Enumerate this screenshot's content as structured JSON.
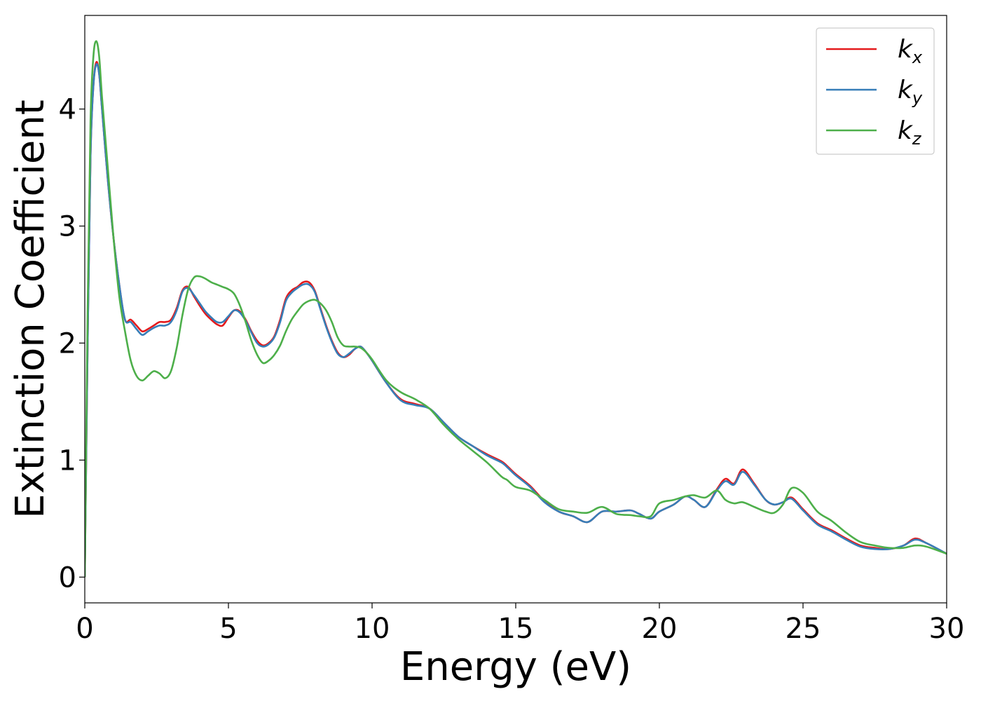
{
  "chart_data": {
    "type": "line",
    "xlabel": "Energy (eV)",
    "ylabel": "Extinction Coefficient",
    "xlim": [
      0,
      30
    ],
    "ylim": [
      -0.22,
      4.8
    ],
    "xticks": [
      "0",
      "5",
      "10",
      "15",
      "20",
      "25",
      "30"
    ],
    "xtick_values": [
      0,
      5,
      10,
      15,
      20,
      25,
      30
    ],
    "yticks": [
      "0",
      "1",
      "2",
      "3",
      "4"
    ],
    "ytick_values": [
      0,
      1,
      2,
      3,
      4
    ],
    "grid": false,
    "legend_position": "top-right",
    "series": [
      {
        "name": "k_x",
        "label_main": "k",
        "label_sub": "x",
        "color": "#e41a1c",
        "x": [
          0,
          0.1,
          0.2,
          0.3,
          0.4,
          0.5,
          0.6,
          0.8,
          1.0,
          1.2,
          1.4,
          1.6,
          1.8,
          2.0,
          2.2,
          2.4,
          2.6,
          2.8,
          3.0,
          3.2,
          3.4,
          3.6,
          3.8,
          4.0,
          4.2,
          4.4,
          4.6,
          4.8,
          5.0,
          5.2,
          5.4,
          5.6,
          5.8,
          6.0,
          6.2,
          6.4,
          6.6,
          6.8,
          7.0,
          7.2,
          7.4,
          7.6,
          7.8,
          8.0,
          8.2,
          8.4,
          8.6,
          8.8,
          9.0,
          9.2,
          9.4,
          9.6,
          9.8,
          10.0,
          10.5,
          11.0,
          11.5,
          12.0,
          12.5,
          13.0,
          13.5,
          14.0,
          14.5,
          14.7,
          15.0,
          15.5,
          16.0,
          16.5,
          17.0,
          17.5,
          18.0,
          18.5,
          19.0,
          19.3,
          19.7,
          20.0,
          20.5,
          20.9,
          21.2,
          21.6,
          22.0,
          22.3,
          22.6,
          22.9,
          23.3,
          23.7,
          24.0,
          24.3,
          24.6,
          25.0,
          25.5,
          26.0,
          26.5,
          27.0,
          27.5,
          28.0,
          28.5,
          28.9,
          29.3,
          30.0
        ],
        "y": [
          0,
          2.0,
          3.6,
          4.2,
          4.4,
          4.3,
          4.0,
          3.4,
          2.9,
          2.5,
          2.2,
          2.2,
          2.15,
          2.1,
          2.12,
          2.15,
          2.18,
          2.18,
          2.2,
          2.3,
          2.45,
          2.48,
          2.4,
          2.32,
          2.25,
          2.2,
          2.16,
          2.15,
          2.22,
          2.28,
          2.27,
          2.2,
          2.1,
          2.02,
          1.98,
          2.0,
          2.06,
          2.2,
          2.38,
          2.45,
          2.48,
          2.52,
          2.52,
          2.45,
          2.3,
          2.15,
          2.02,
          1.92,
          1.88,
          1.9,
          1.95,
          1.97,
          1.92,
          1.85,
          1.66,
          1.52,
          1.48,
          1.44,
          1.32,
          1.2,
          1.12,
          1.05,
          0.99,
          0.95,
          0.88,
          0.78,
          0.65,
          0.56,
          0.52,
          0.47,
          0.56,
          0.56,
          0.57,
          0.54,
          0.5,
          0.56,
          0.62,
          0.69,
          0.66,
          0.6,
          0.75,
          0.84,
          0.8,
          0.92,
          0.8,
          0.66,
          0.62,
          0.64,
          0.68,
          0.58,
          0.46,
          0.4,
          0.33,
          0.27,
          0.25,
          0.24,
          0.27,
          0.33,
          0.29,
          0.2
        ]
      },
      {
        "name": "k_y",
        "label_main": "k",
        "label_sub": "y",
        "color": "#377eb8",
        "x": [
          0,
          0.1,
          0.2,
          0.3,
          0.4,
          0.5,
          0.6,
          0.8,
          1.0,
          1.2,
          1.4,
          1.6,
          1.8,
          2.0,
          2.2,
          2.4,
          2.6,
          2.8,
          3.0,
          3.2,
          3.4,
          3.6,
          3.8,
          4.0,
          4.2,
          4.4,
          4.6,
          4.8,
          5.0,
          5.2,
          5.4,
          5.6,
          5.8,
          6.0,
          6.2,
          6.4,
          6.6,
          6.8,
          7.0,
          7.2,
          7.4,
          7.6,
          7.8,
          8.0,
          8.2,
          8.4,
          8.6,
          8.8,
          9.0,
          9.2,
          9.4,
          9.6,
          9.8,
          10.0,
          10.5,
          11.0,
          11.5,
          12.0,
          12.5,
          13.0,
          13.5,
          14.0,
          14.5,
          14.7,
          15.0,
          15.5,
          16.0,
          16.5,
          17.0,
          17.5,
          18.0,
          18.5,
          19.0,
          19.3,
          19.7,
          20.0,
          20.5,
          20.9,
          21.2,
          21.6,
          22.0,
          22.3,
          22.6,
          22.9,
          23.3,
          23.7,
          24.0,
          24.3,
          24.6,
          25.0,
          25.5,
          26.0,
          26.5,
          27.0,
          27.5,
          28.0,
          28.5,
          28.9,
          29.3,
          30.0
        ],
        "y": [
          0,
          2.0,
          3.6,
          4.2,
          4.38,
          4.3,
          4.0,
          3.4,
          2.9,
          2.5,
          2.2,
          2.18,
          2.12,
          2.07,
          2.1,
          2.13,
          2.15,
          2.15,
          2.18,
          2.28,
          2.44,
          2.47,
          2.41,
          2.34,
          2.27,
          2.22,
          2.18,
          2.18,
          2.23,
          2.28,
          2.26,
          2.19,
          2.09,
          2.0,
          1.97,
          1.99,
          2.05,
          2.18,
          2.36,
          2.43,
          2.47,
          2.5,
          2.5,
          2.44,
          2.29,
          2.14,
          2.01,
          1.91,
          1.88,
          1.91,
          1.95,
          1.97,
          1.92,
          1.85,
          1.66,
          1.51,
          1.47,
          1.44,
          1.32,
          1.2,
          1.12,
          1.04,
          0.98,
          0.94,
          0.87,
          0.77,
          0.64,
          0.56,
          0.52,
          0.47,
          0.56,
          0.56,
          0.57,
          0.54,
          0.5,
          0.56,
          0.62,
          0.69,
          0.66,
          0.6,
          0.74,
          0.82,
          0.79,
          0.9,
          0.79,
          0.66,
          0.62,
          0.64,
          0.67,
          0.57,
          0.45,
          0.39,
          0.32,
          0.26,
          0.24,
          0.24,
          0.27,
          0.32,
          0.29,
          0.2
        ]
      },
      {
        "name": "k_z",
        "label_main": "k",
        "label_sub": "z",
        "color": "#4daf4a",
        "x": [
          0,
          0.1,
          0.2,
          0.3,
          0.4,
          0.5,
          0.6,
          0.8,
          1.0,
          1.2,
          1.4,
          1.6,
          1.8,
          2.0,
          2.2,
          2.4,
          2.6,
          2.8,
          3.0,
          3.2,
          3.4,
          3.6,
          3.8,
          4.0,
          4.2,
          4.4,
          4.6,
          4.8,
          5.0,
          5.2,
          5.4,
          5.6,
          5.8,
          6.0,
          6.2,
          6.4,
          6.6,
          6.8,
          7.0,
          7.2,
          7.4,
          7.6,
          7.8,
          8.0,
          8.2,
          8.4,
          8.6,
          8.8,
          9.0,
          9.2,
          9.4,
          9.6,
          9.8,
          10.0,
          10.5,
          11.0,
          11.5,
          12.0,
          12.5,
          13.0,
          13.5,
          14.0,
          14.5,
          14.7,
          15.0,
          15.5,
          16.0,
          16.5,
          17.0,
          17.5,
          18.0,
          18.5,
          19.0,
          19.3,
          19.7,
          20.0,
          20.5,
          20.9,
          21.2,
          21.6,
          22.0,
          22.3,
          22.6,
          22.9,
          23.3,
          23.7,
          24.0,
          24.3,
          24.6,
          25.0,
          25.5,
          26.0,
          26.5,
          27.0,
          27.5,
          28.0,
          28.5,
          28.9,
          29.3,
          30.0
        ],
        "y": [
          0,
          2.3,
          3.9,
          4.45,
          4.58,
          4.45,
          4.1,
          3.5,
          2.9,
          2.4,
          2.1,
          1.85,
          1.72,
          1.68,
          1.72,
          1.76,
          1.74,
          1.7,
          1.76,
          1.96,
          2.24,
          2.46,
          2.56,
          2.57,
          2.55,
          2.52,
          2.5,
          2.48,
          2.46,
          2.42,
          2.32,
          2.18,
          2.02,
          1.9,
          1.83,
          1.85,
          1.9,
          1.98,
          2.1,
          2.2,
          2.27,
          2.33,
          2.36,
          2.37,
          2.34,
          2.28,
          2.18,
          2.05,
          1.98,
          1.97,
          1.97,
          1.96,
          1.92,
          1.86,
          1.68,
          1.58,
          1.52,
          1.44,
          1.3,
          1.18,
          1.08,
          0.98,
          0.86,
          0.83,
          0.77,
          0.74,
          0.66,
          0.58,
          0.56,
          0.55,
          0.6,
          0.54,
          0.53,
          0.52,
          0.52,
          0.63,
          0.66,
          0.69,
          0.7,
          0.68,
          0.74,
          0.66,
          0.63,
          0.64,
          0.6,
          0.56,
          0.55,
          0.62,
          0.76,
          0.72,
          0.56,
          0.48,
          0.38,
          0.3,
          0.27,
          0.25,
          0.25,
          0.27,
          0.26,
          0.2
        ]
      }
    ]
  }
}
